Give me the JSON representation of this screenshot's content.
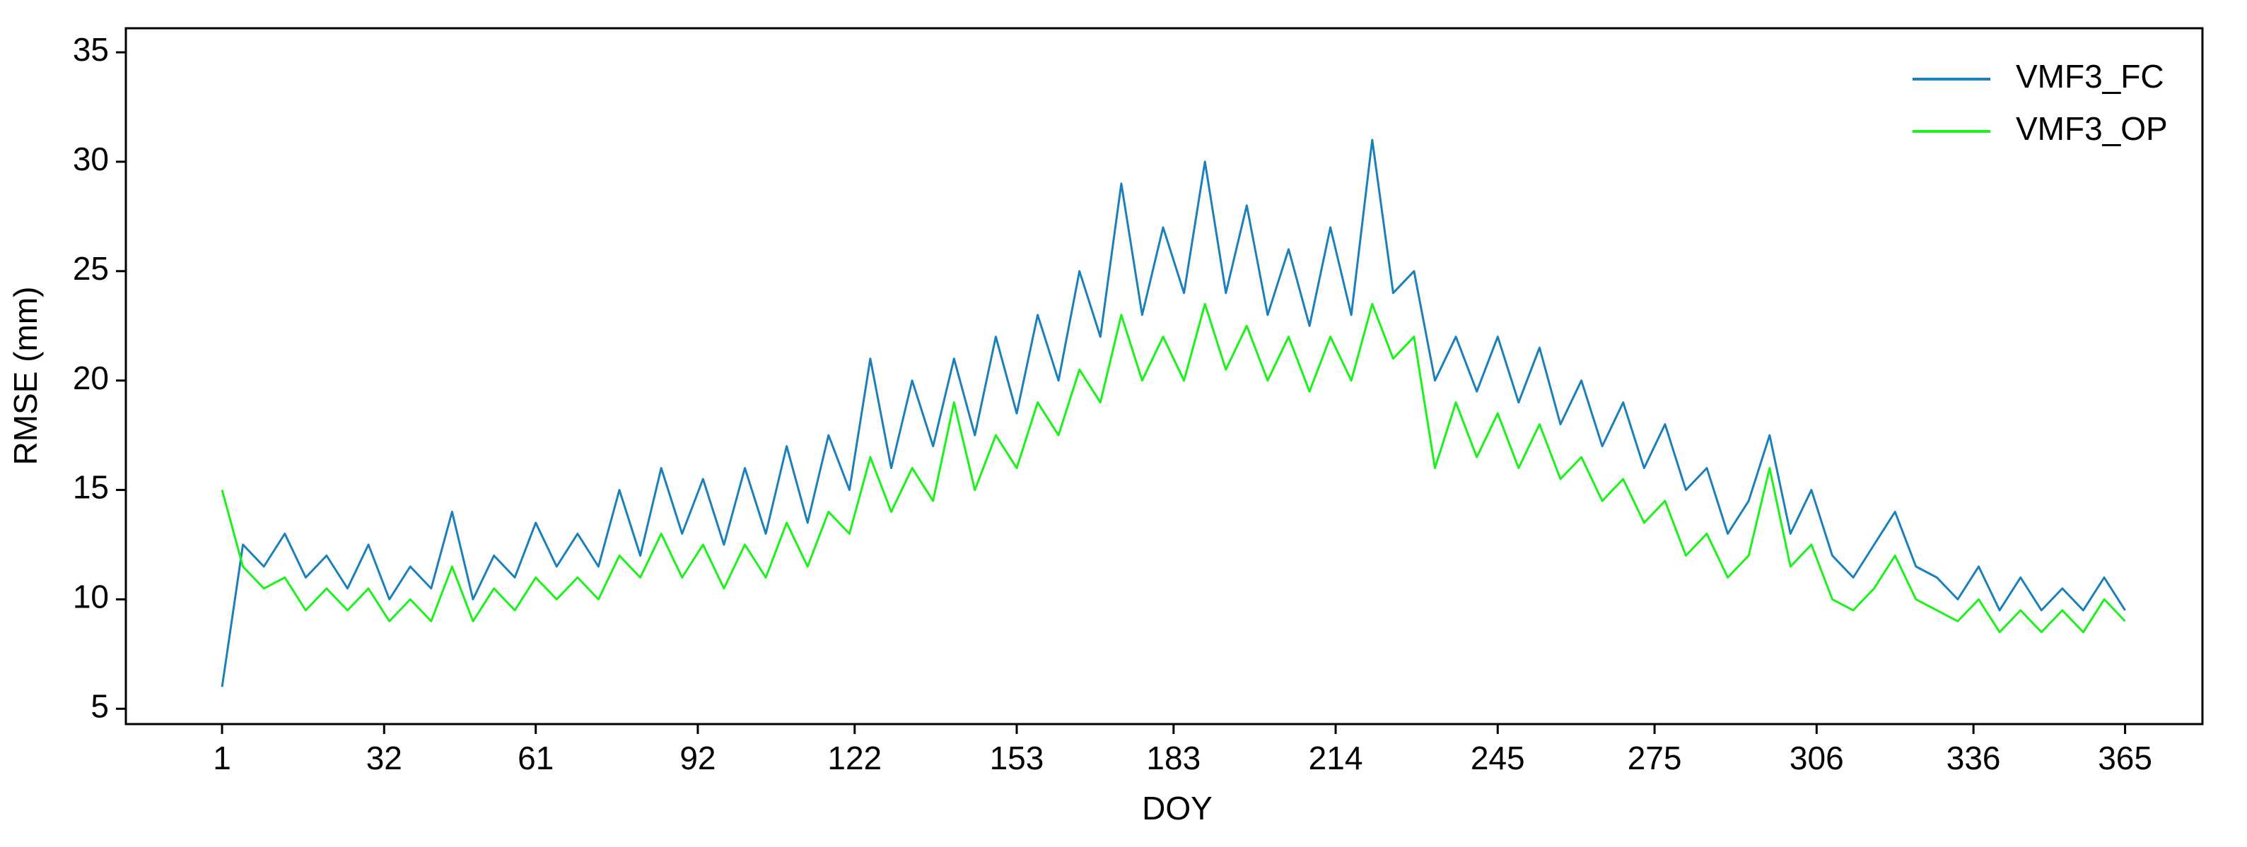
{
  "chart_data": {
    "type": "line",
    "xlabel": "DOY",
    "ylabel": "RMSE (mm)",
    "x": [
      1,
      5,
      9,
      13,
      17,
      21,
      25,
      29,
      33,
      37,
      41,
      45,
      49,
      53,
      57,
      61,
      65,
      69,
      73,
      77,
      81,
      85,
      89,
      93,
      97,
      101,
      105,
      109,
      113,
      117,
      121,
      125,
      129,
      133,
      137,
      141,
      145,
      149,
      153,
      157,
      161,
      165,
      169,
      173,
      177,
      181,
      185,
      189,
      193,
      197,
      201,
      205,
      209,
      213,
      217,
      221,
      225,
      229,
      233,
      237,
      241,
      245,
      249,
      253,
      257,
      261,
      265,
      269,
      273,
      277,
      281,
      285,
      289,
      293,
      297,
      301,
      305,
      309,
      313,
      317,
      321,
      325,
      329,
      333,
      337,
      341,
      345,
      349,
      353,
      357,
      361,
      365
    ],
    "series": [
      {
        "name": "VMF3_FC",
        "color": "#1a80bb",
        "values": [
          6,
          12.5,
          11.5,
          13,
          11,
          12,
          10.5,
          12.5,
          10,
          11.5,
          10.5,
          14,
          10,
          12,
          11,
          13.5,
          11.5,
          13,
          11.5,
          15,
          12,
          16,
          13,
          15.5,
          12.5,
          16,
          13,
          17,
          13.5,
          17.5,
          15,
          21,
          16,
          20,
          17,
          21,
          17.5,
          22,
          18.5,
          23,
          20,
          25,
          22,
          29,
          23,
          27,
          24,
          30,
          24,
          28,
          23,
          26,
          22.5,
          27,
          23,
          31,
          24,
          25,
          20,
          22,
          19.5,
          22,
          19,
          21.5,
          18,
          20,
          17,
          19,
          16,
          18,
          15,
          16,
          13,
          14.5,
          17.5,
          13,
          15,
          12,
          11,
          12.5,
          14,
          11.5,
          11,
          10,
          11.5,
          9.5,
          11,
          9.5,
          10.5,
          9.5,
          11,
          9.5
        ]
      },
      {
        "name": "VMF3_OP",
        "color": "#19f319",
        "values": [
          15,
          11.5,
          10.5,
          11,
          9.5,
          10.5,
          9.5,
          10.5,
          9,
          10,
          9,
          11.5,
          9,
          10.5,
          9.5,
          11,
          10,
          11,
          10,
          12,
          11,
          13,
          11,
          12.5,
          10.5,
          12.5,
          11,
          13.5,
          11.5,
          14,
          13,
          16.5,
          14,
          16,
          14.5,
          19,
          15,
          17.5,
          16,
          19,
          17.5,
          20.5,
          19,
          23,
          20,
          22,
          20,
          23.5,
          20.5,
          22.5,
          20,
          22,
          19.5,
          22,
          20,
          23.5,
          21,
          22,
          16,
          19,
          16.5,
          18.5,
          16,
          18,
          15.5,
          16.5,
          14.5,
          15.5,
          13.5,
          14.5,
          12,
          13,
          11,
          12,
          16,
          11.5,
          12.5,
          10,
          9.5,
          10.5,
          12,
          10,
          9.5,
          9,
          10,
          8.5,
          9.5,
          8.5,
          9.5,
          8.5,
          10,
          9
        ]
      }
    ],
    "xlim": [
      -17.4,
      379.8
    ],
    "ylim": [
      4.3,
      36.1
    ],
    "xticks": [
      1,
      32,
      61,
      92,
      122,
      153,
      183,
      214,
      245,
      275,
      306,
      336,
      365
    ],
    "yticks": [
      5,
      10,
      15,
      20,
      25,
      30,
      35
    ],
    "grid": false,
    "legend": "upper right"
  }
}
